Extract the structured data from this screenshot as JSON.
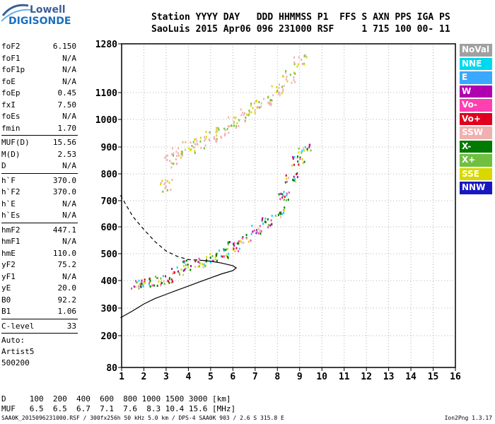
{
  "logo": {
    "line1": "Lowell",
    "line2": "DIGISONDE"
  },
  "header": {
    "line1": "Station YYYY DAY   DDD HHMMSS P1  FFS S AXN PPS IGA PS",
    "line2": "SaoLuis 2015 Apr06 096 231000 RSF     1 715 100 00- 11"
  },
  "params_groups": [
    [
      [
        "foF2",
        "6.150"
      ],
      [
        "foF1",
        "N/A"
      ],
      [
        "foF1p",
        "N/A"
      ],
      [
        "foE",
        "N/A"
      ],
      [
        "foEp",
        "0.45"
      ],
      [
        "fxI",
        "7.50"
      ],
      [
        "foEs",
        "N/A"
      ],
      [
        "fmin",
        "1.70"
      ]
    ],
    [
      [
        "MUF(D)",
        "15.56"
      ],
      [
        "M(D)",
        "2.53"
      ],
      [
        "D",
        "N/A"
      ]
    ],
    [
      [
        "h`F",
        "370.0"
      ],
      [
        "h`F2",
        "370.0"
      ],
      [
        "h`E",
        "N/A"
      ],
      [
        "h`Es",
        "N/A"
      ]
    ],
    [
      [
        "hmF2",
        "447.1"
      ],
      [
        "hmF1",
        "N/A"
      ],
      [
        "hmE",
        "110.0"
      ],
      [
        "yF2",
        "75.2"
      ],
      [
        "yF1",
        "N/A"
      ],
      [
        "yE",
        "20.0"
      ],
      [
        "B0",
        "92.2"
      ],
      [
        "B1",
        "1.06"
      ]
    ],
    [
      [
        "C-level",
        "33"
      ]
    ]
  ],
  "auto": {
    "l1": "Auto:",
    "l2": "Artist5",
    "l3": "500200"
  },
  "legend": [
    {
      "label": "NoVal",
      "color": "#a0a0a0"
    },
    {
      "label": "NNE",
      "color": "#00d8f0"
    },
    {
      "label": "E",
      "color": "#3aa8ff"
    },
    {
      "label": "W",
      "color": "#b000b0"
    },
    {
      "label": "Vo-",
      "color": "#ff40b0"
    },
    {
      "label": "Vo+",
      "color": "#e00020"
    },
    {
      "label": "SSW",
      "color": "#f0b0b0"
    },
    {
      "label": "X-",
      "color": "#007a00"
    },
    {
      "label": "X+",
      "color": "#70c040"
    },
    {
      "label": "SSE",
      "color": "#d8d800"
    },
    {
      "label": "NNW",
      "color": "#1818c0"
    }
  ],
  "footer": {
    "d_row": "D     100  200  400  600  800 1000 1500 3000 [km]",
    "muf_row": "MUF   6.5  6.5  6.7  7.1  7.6  8.3 10.4 15.6 [MHz]"
  },
  "bottom": {
    "left": "SAA0K_2015096231000.RSF / 300fx256h 50 kHz 5.0 km / DPS-4 SAA0K 903 / 2.6 S 315.8 E",
    "right": "Ion2Png 1.3.17"
  },
  "chart_data": {
    "type": "scatter",
    "xlim": [
      1,
      16
    ],
    "ylim": [
      80,
      1280
    ],
    "x_ticks": [
      1,
      2,
      3,
      4,
      5,
      6,
      7,
      8,
      9,
      10,
      11,
      12,
      13,
      14,
      15,
      16
    ],
    "y_ticks": [
      80,
      200,
      300,
      400,
      500,
      600,
      700,
      800,
      900,
      1000,
      1100,
      1280
    ],
    "series": [
      {
        "name": "O-trace",
        "values": [
          [
            1.7,
            390
          ],
          [
            2.0,
            395
          ],
          [
            2.5,
            400
          ],
          [
            3.0,
            410
          ],
          [
            3.5,
            440
          ],
          [
            4.0,
            460
          ],
          [
            4.5,
            470
          ],
          [
            5.0,
            485
          ],
          [
            5.5,
            505
          ],
          [
            6.0,
            530
          ],
          [
            6.5,
            560
          ],
          [
            7.0,
            590
          ],
          [
            7.5,
            620
          ],
          [
            8.0,
            660
          ],
          [
            8.3,
            720
          ],
          [
            8.6,
            790
          ],
          [
            8.9,
            850
          ],
          [
            9.2,
            900
          ]
        ]
      },
      {
        "name": "X-trace",
        "values": [
          [
            3.0,
            760
          ],
          [
            3.2,
            850
          ],
          [
            3.5,
            880
          ],
          [
            4.0,
            900
          ],
          [
            4.5,
            920
          ],
          [
            5.0,
            940
          ],
          [
            5.5,
            960
          ],
          [
            6.0,
            990
          ],
          [
            6.5,
            1020
          ],
          [
            7.0,
            1050
          ],
          [
            7.5,
            1080
          ],
          [
            8.0,
            1110
          ],
          [
            8.5,
            1160
          ],
          [
            9.0,
            1220
          ]
        ]
      }
    ],
    "profile_solid": [
      [
        0.95,
        265
      ],
      [
        1.5,
        290
      ],
      [
        2.0,
        315
      ],
      [
        2.5,
        335
      ],
      [
        3.0,
        350
      ],
      [
        3.5,
        365
      ],
      [
        4.0,
        380
      ],
      [
        4.5,
        395
      ],
      [
        5.0,
        410
      ],
      [
        5.5,
        425
      ],
      [
        6.0,
        437
      ],
      [
        6.15,
        447
      ],
      [
        6.0,
        455
      ],
      [
        5.5,
        465
      ],
      [
        5.0,
        472
      ],
      [
        4.5,
        476
      ]
    ],
    "profile_dashed": [
      [
        0.95,
        720
      ],
      [
        1.5,
        640
      ],
      [
        2.0,
        590
      ],
      [
        2.5,
        545
      ],
      [
        3.0,
        510
      ],
      [
        3.5,
        490
      ],
      [
        4.0,
        478
      ],
      [
        4.5,
        476
      ]
    ]
  }
}
